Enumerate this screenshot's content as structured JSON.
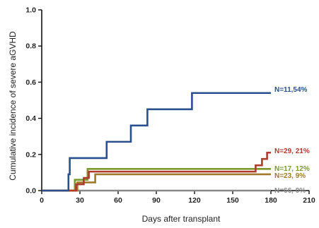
{
  "chart_data": {
    "type": "line",
    "step": true,
    "xlabel": "Days after transplant",
    "ylabel": "Cumulative incidence of severe aGVHD",
    "xlim": [
      0,
      210
    ],
    "ylim": [
      0,
      1.0
    ],
    "xticks": [
      0,
      30,
      60,
      90,
      120,
      150,
      180,
      210
    ],
    "yticks": [
      0.0,
      0.2,
      0.4,
      0.6,
      0.8,
      1.0
    ],
    "xtick_labels": [
      "0",
      "30",
      "60",
      "90",
      "120",
      "150",
      "180",
      "210"
    ],
    "ytick_labels": [
      "0.0",
      "0.2",
      "0.4",
      "0.6",
      "0.8",
      "1.0"
    ],
    "grid": false,
    "series": [
      {
        "label": "N=11,54%",
        "color": "#2a4f8f",
        "points": [
          [
            0,
            0
          ],
          [
            21,
            0
          ],
          [
            21,
            0.09
          ],
          [
            22,
            0.09
          ],
          [
            22,
            0.18
          ],
          [
            51,
            0.18
          ],
          [
            51,
            0.27
          ],
          [
            70,
            0.27
          ],
          [
            70,
            0.36
          ],
          [
            83,
            0.36
          ],
          [
            83,
            0.45
          ],
          [
            118,
            0.45
          ],
          [
            118,
            0.54
          ],
          [
            180,
            0.54
          ]
        ]
      },
      {
        "label": "N=29, 21%",
        "color": "#b03a2e",
        "points": [
          [
            0,
            0
          ],
          [
            27,
            0
          ],
          [
            27,
            0.035
          ],
          [
            33,
            0.035
          ],
          [
            33,
            0.07
          ],
          [
            37,
            0.07
          ],
          [
            37,
            0.105
          ],
          [
            168,
            0.105
          ],
          [
            168,
            0.14
          ],
          [
            173,
            0.14
          ],
          [
            173,
            0.175
          ],
          [
            177,
            0.175
          ],
          [
            177,
            0.21
          ],
          [
            180,
            0.21
          ]
        ]
      },
      {
        "label": "N=17, 12%",
        "color": "#7a9a2e",
        "points": [
          [
            0,
            0
          ],
          [
            26,
            0
          ],
          [
            26,
            0.06
          ],
          [
            36,
            0.06
          ],
          [
            36,
            0.12
          ],
          [
            180,
            0.12
          ]
        ]
      },
      {
        "label": "N=23, 9%",
        "color": "#a07a28",
        "points": [
          [
            0,
            0
          ],
          [
            28,
            0
          ],
          [
            28,
            0.045
          ],
          [
            42,
            0.045
          ],
          [
            42,
            0.09
          ],
          [
            180,
            0.09
          ]
        ]
      },
      {
        "label": "N=66, 0%",
        "color": "#888888",
        "points": [
          [
            0,
            0
          ],
          [
            180,
            0
          ]
        ]
      }
    ]
  }
}
